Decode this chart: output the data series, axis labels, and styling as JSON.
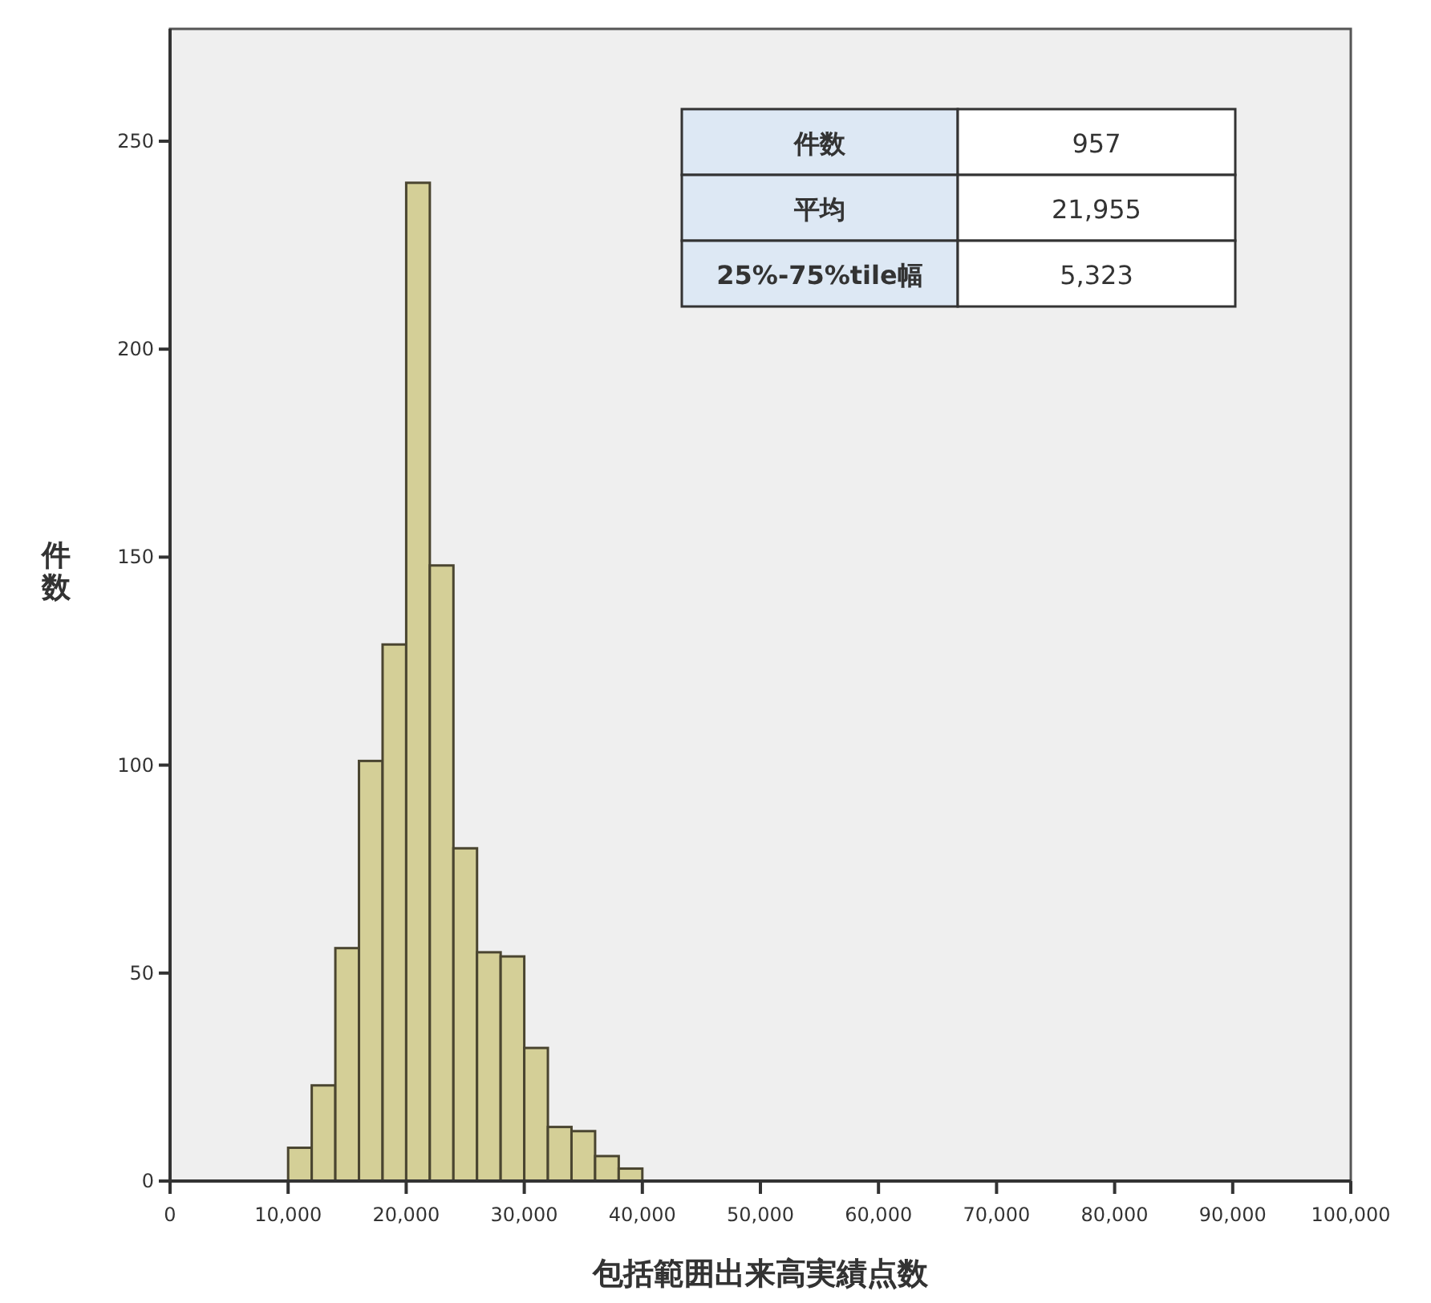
{
  "chart_data": {
    "type": "histogram",
    "xlabel": "包括範囲出来高実績点数",
    "ylabel": "件数",
    "color": "#d4cf97",
    "bins": [
      10000,
      12000,
      14000,
      16000,
      18000,
      20000,
      22000,
      24000,
      26000,
      28000,
      30000,
      32000,
      34000,
      36000,
      38000,
      40000
    ],
    "values": [
      8,
      23,
      56,
      101,
      129,
      240,
      148,
      80,
      55,
      54,
      32,
      13,
      12,
      6,
      3
    ],
    "xlim": [
      0,
      100000
    ],
    "xticks": [
      0,
      {
        "value": 10000,
        "label": "10,000"
      },
      {
        "value": 20000,
        "label": "20,000"
      },
      {
        "value": 30000,
        "label": "30,000"
      },
      {
        "value": 40000,
        "label": "40,000"
      },
      {
        "value": 50000,
        "label": "50,000"
      },
      {
        "value": 60000,
        "label": "60,000"
      },
      {
        "value": 70000,
        "label": "70,000"
      },
      {
        "value": 80000,
        "label": "80,000"
      },
      {
        "value": 90000,
        "label": "90,000"
      },
      {
        "value": 100000,
        "label": "100,000"
      }
    ],
    "ylim": [
      0,
      277
    ],
    "yticks": [
      0,
      50,
      100,
      150,
      200,
      250
    ],
    "annotations": [
      "件数",
      "957",
      "平均",
      "21,955",
      "25%-75%tile幅",
      "5,323"
    ]
  }
}
